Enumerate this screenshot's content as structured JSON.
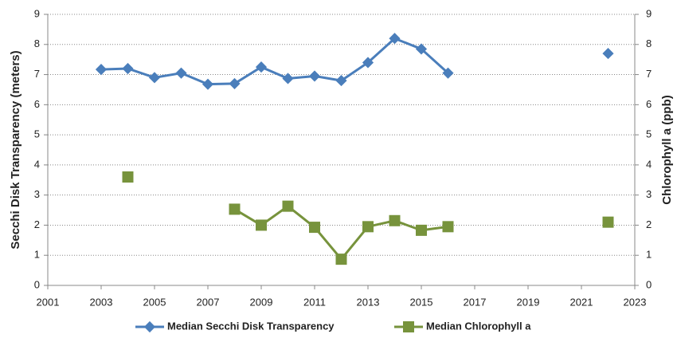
{
  "chart_data": {
    "type": "line",
    "x": [
      2003,
      2004,
      2005,
      2006,
      2007,
      2008,
      2009,
      2010,
      2011,
      2012,
      2013,
      2014,
      2015,
      2016,
      2017,
      2018,
      2019,
      2020,
      2021,
      2022
    ],
    "series": [
      {
        "name": "Median Secchi Disk Transparency",
        "color": "#4a7ebb",
        "marker": "diamond",
        "values": [
          7.17,
          7.2,
          6.9,
          7.05,
          6.68,
          6.7,
          7.25,
          6.87,
          6.95,
          6.8,
          7.4,
          8.2,
          7.85,
          7.05,
          null,
          null,
          null,
          null,
          null,
          7.7
        ]
      },
      {
        "name": "Median Chlorophyll a",
        "color": "#77933c",
        "marker": "square",
        "axis": "y2",
        "values": [
          null,
          3.6,
          null,
          null,
          null,
          2.53,
          2.0,
          2.63,
          1.93,
          0.87,
          1.95,
          2.15,
          1.83,
          1.95,
          null,
          null,
          null,
          null,
          null,
          2.1
        ]
      }
    ],
    "ylabel": "Secchi Disk Transparency (meters)",
    "y2label": "Chlorophyll a (ppb)",
    "xlim": [
      2001,
      2023
    ],
    "xticks": [
      2001,
      2003,
      2005,
      2007,
      2009,
      2011,
      2013,
      2015,
      2017,
      2019,
      2021,
      2023
    ],
    "ylim": [
      0,
      9
    ],
    "yticks": [
      0,
      1,
      2,
      3,
      4,
      5,
      6,
      7,
      8,
      9
    ],
    "y2lim": [
      0,
      9
    ],
    "y2ticks": [
      0,
      1,
      2,
      3,
      4,
      5,
      6,
      7,
      8,
      9
    ],
    "grid": true,
    "legend": "bottom"
  }
}
